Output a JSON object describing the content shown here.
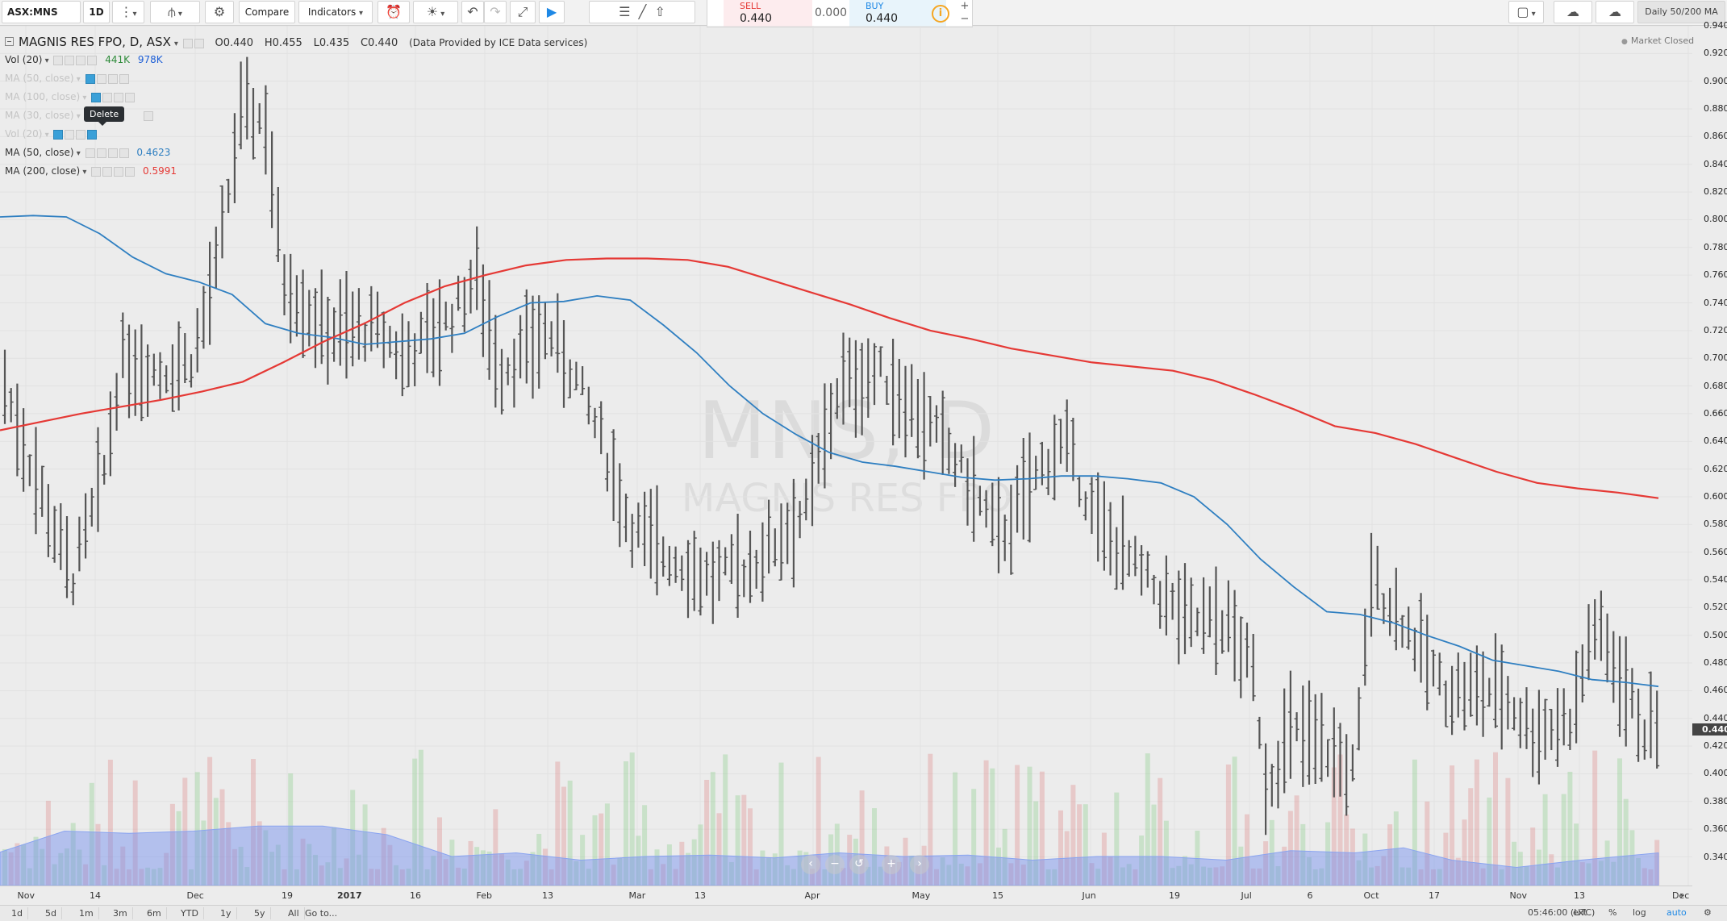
{
  "toolbar": {
    "symbol": "ASX:MNS",
    "interval": "1D",
    "compare_label": "Compare",
    "indicators_label": "Indicators",
    "layout_name": "Daily 50/200 MA"
  },
  "order_panel": {
    "sell_label": "SELL",
    "sell_price": "0.440",
    "spread": "0.000",
    "buy_label": "BUY",
    "buy_price": "0.440",
    "info_glyph": "i",
    "sell_color": "#e53935",
    "buy_color": "#1e88e5"
  },
  "legend": {
    "title": "MAGNIS RES FPO, D, ASX",
    "open": "O0.440",
    "high": "H0.455",
    "low": "L0.435",
    "close": "C0.440",
    "provider": "(Data Provided by ICE Data services)",
    "indicators": [
      {
        "name": "Vol (20)",
        "values": [
          "441K",
          "978K"
        ],
        "colors": [
          "#2e8b3a",
          "#1e5fd6"
        ],
        "faded": false
      },
      {
        "name": "MA (50, close)",
        "values": [],
        "faded": true
      },
      {
        "name": "MA (100, close)",
        "values": [],
        "faded": true
      },
      {
        "name": "MA (30, close)",
        "values": [],
        "faded": true
      },
      {
        "name": "Vol (20)",
        "values": [],
        "faded": true
      },
      {
        "name": "MA (50, close)",
        "values": [
          "0.4623"
        ],
        "colors": [
          "#2f7fc1"
        ],
        "faded": false
      },
      {
        "name": "MA (200, close)",
        "values": [
          "0.5991"
        ],
        "colors": [
          "#e53935"
        ],
        "faded": false
      }
    ],
    "tooltip": "Delete"
  },
  "market_status": "Market Closed",
  "watermark": {
    "symbol": "MNS, D",
    "name": "MAGNIS RES FPO"
  },
  "price_scale": {
    "labels": [
      "0.940",
      "0.920",
      "0.900",
      "0.880",
      "0.860",
      "0.840",
      "0.820",
      "0.800",
      "0.780",
      "0.760",
      "0.740",
      "0.720",
      "0.700",
      "0.680",
      "0.660",
      "0.640",
      "0.620",
      "0.600",
      "0.580",
      "0.560",
      "0.540",
      "0.520",
      "0.500",
      "0.480",
      "0.460",
      "0.440",
      "0.420",
      "0.400",
      "0.380",
      "0.360",
      "0.340"
    ],
    "last_price": "0.440"
  },
  "time_axis": [
    {
      "label": "Nov",
      "bold": false
    },
    {
      "label": "14",
      "bold": false
    },
    {
      "label": "Dec",
      "bold": false
    },
    {
      "label": "19",
      "bold": false
    },
    {
      "label": "2017",
      "bold": true
    },
    {
      "label": "16",
      "bold": false
    },
    {
      "label": "Feb",
      "bold": false
    },
    {
      "label": "13",
      "bold": false
    },
    {
      "label": "Mar",
      "bold": false
    },
    {
      "label": "13",
      "bold": false
    },
    {
      "label": "Apr",
      "bold": false
    },
    {
      "label": "May",
      "bold": false
    },
    {
      "label": "15",
      "bold": false
    },
    {
      "label": "Jun",
      "bold": false
    },
    {
      "label": "19",
      "bold": false
    },
    {
      "label": "Jul",
      "bold": false
    },
    {
      "label": "6",
      "bold": false
    },
    {
      "label": "Oct",
      "bold": false
    },
    {
      "label": "17",
      "bold": false
    },
    {
      "label": "Nov",
      "bold": false
    },
    {
      "label": "13",
      "bold": false
    },
    {
      "label": "Dec",
      "bold": false
    }
  ],
  "bottom_bar": {
    "ranges": [
      "1d",
      "5d",
      "1m",
      "3m",
      "6m",
      "YTD",
      "1y",
      "5y",
      "All"
    ],
    "goto": "Go to...",
    "clock": "05:46:00 (UTC)",
    "ext": "ext",
    "percent": "%",
    "log": "log",
    "auto": "auto"
  },
  "chart_data": {
    "type": "ohlc",
    "price_range": [
      0.33,
      0.945
    ],
    "ma50": [
      0.802,
      0.803,
      0.802,
      0.79,
      0.773,
      0.761,
      0.755,
      0.746,
      0.725,
      0.718,
      0.715,
      0.71,
      0.712,
      0.714,
      0.718,
      0.73,
      0.74,
      0.741,
      0.745,
      0.742,
      0.724,
      0.704,
      0.68,
      0.66,
      0.645,
      0.632,
      0.625,
      0.622,
      0.618,
      0.614,
      0.612,
      0.613,
      0.615,
      0.615,
      0.613,
      0.61,
      0.6,
      0.58,
      0.555,
      0.535,
      0.517,
      0.515,
      0.509,
      0.5,
      0.492,
      0.482,
      0.478,
      0.474,
      0.468,
      0.466,
      0.463
    ],
    "ma200": [
      0.648,
      0.654,
      0.66,
      0.665,
      0.67,
      0.676,
      0.683,
      0.697,
      0.712,
      0.725,
      0.74,
      0.752,
      0.76,
      0.767,
      0.771,
      0.772,
      0.772,
      0.771,
      0.766,
      0.757,
      0.748,
      0.739,
      0.729,
      0.72,
      0.714,
      0.707,
      0.702,
      0.697,
      0.694,
      0.691,
      0.684,
      0.674,
      0.663,
      0.651,
      0.646,
      0.638,
      0.628,
      0.618,
      0.61,
      0.606,
      0.603,
      0.599
    ]
  }
}
